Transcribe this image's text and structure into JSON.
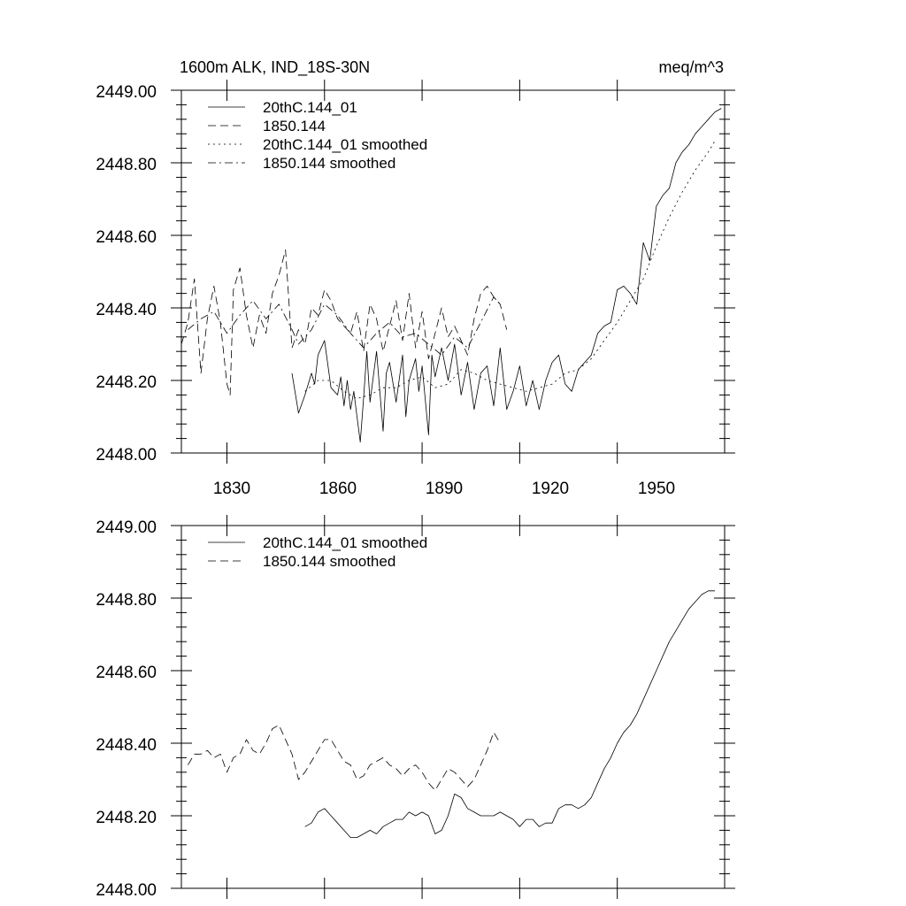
{
  "chart_data": [
    {
      "type": "line",
      "title": "1600m ALK, IND_18S-30N",
      "units": "meq/m^3",
      "xlim": [
        1816,
        1983
      ],
      "ylim": [
        2448.0,
        2449.0
      ],
      "xticks": [
        1830,
        1860,
        1890,
        1920,
        1950
      ],
      "xtick_labels": [
        "1830",
        "1860",
        "1890",
        "1920",
        "1950"
      ],
      "yticks": [
        2448.0,
        2448.2,
        2448.4,
        2448.6,
        2448.8,
        2449.0
      ],
      "ytick_labels": [
        "2448.00",
        "2448.20",
        "2448.40",
        "2448.60",
        "2448.80",
        "2449.00"
      ],
      "legend_position": "top-left",
      "series": [
        {
          "name": "20thC.144_01",
          "dash": "solid",
          "x": [
            1850,
            1852,
            1854,
            1856,
            1857,
            1858,
            1860,
            1862,
            1864,
            1865,
            1866,
            1867,
            1868,
            1869,
            1870,
            1871,
            1872,
            1873,
            1874,
            1876,
            1878,
            1879,
            1880,
            1882,
            1884,
            1885,
            1886,
            1888,
            1889,
            1890,
            1892,
            1893,
            1894,
            1896,
            1898,
            1900,
            1902,
            1904,
            1906,
            1908,
            1910,
            1912,
            1914,
            1916,
            1918,
            1920,
            1922,
            1924,
            1926,
            1928,
            1930,
            1932,
            1934,
            1936,
            1938,
            1940,
            1942,
            1944,
            1946,
            1948,
            1950,
            1952,
            1954,
            1956,
            1958,
            1960,
            1962,
            1964,
            1966,
            1968,
            1970,
            1972,
            1974,
            1976,
            1978,
            1980,
            1982
          ],
          "y": [
            2448.22,
            2448.11,
            2448.16,
            2448.22,
            2448.19,
            2448.27,
            2448.31,
            2448.18,
            2448.16,
            2448.21,
            2448.13,
            2448.2,
            2448.12,
            2448.17,
            2448.1,
            2448.03,
            2448.15,
            2448.28,
            2448.14,
            2448.28,
            2448.06,
            2448.22,
            2448.25,
            2448.14,
            2448.27,
            2448.1,
            2448.2,
            2448.26,
            2448.17,
            2448.24,
            2448.05,
            2448.27,
            2448.21,
            2448.29,
            2448.2,
            2448.3,
            2448.16,
            2448.25,
            2448.12,
            2448.22,
            2448.24,
            2448.13,
            2448.29,
            2448.12,
            2448.17,
            2448.24,
            2448.13,
            2448.2,
            2448.12,
            2448.2,
            2448.25,
            2448.27,
            2448.19,
            2448.17,
            2448.23,
            2448.25,
            2448.27,
            2448.33,
            2448.35,
            2448.36,
            2448.45,
            2448.46,
            2448.44,
            2448.41,
            2448.58,
            2448.53,
            2448.68,
            2448.71,
            2448.73,
            2448.8,
            2448.83,
            2448.85,
            2448.88,
            2448.9,
            2448.92,
            2448.94,
            2448.95
          ]
        },
        {
          "name": "1850.144",
          "dash": "long-dash",
          "x": [
            1816,
            1818,
            1820,
            1822,
            1824,
            1826,
            1828,
            1830,
            1831,
            1832,
            1834,
            1836,
            1838,
            1840,
            1842,
            1844,
            1846,
            1848,
            1850,
            1852,
            1854,
            1856,
            1858,
            1860,
            1862,
            1864,
            1866,
            1868,
            1870,
            1872,
            1874,
            1876,
            1878,
            1880,
            1882,
            1884,
            1886,
            1888,
            1890,
            1892,
            1894,
            1896,
            1898,
            1900,
            1902,
            1904,
            1906,
            1908,
            1910,
            1912,
            1914,
            1916
          ],
          "y": [
            2448.3,
            2448.36,
            2448.48,
            2448.22,
            2448.37,
            2448.46,
            2448.36,
            2448.19,
            2448.16,
            2448.45,
            2448.51,
            2448.38,
            2448.29,
            2448.38,
            2448.33,
            2448.44,
            2448.49,
            2448.56,
            2448.29,
            2448.34,
            2448.3,
            2448.4,
            2448.38,
            2448.45,
            2448.42,
            2448.37,
            2448.35,
            2448.33,
            2448.39,
            2448.28,
            2448.41,
            2448.37,
            2448.28,
            2448.35,
            2448.42,
            2448.31,
            2448.44,
            2448.29,
            2448.39,
            2448.26,
            2448.33,
            2448.4,
            2448.32,
            2448.35,
            2448.31,
            2448.27,
            2448.37,
            2448.44,
            2448.46,
            2448.43,
            2448.41,
            2448.34
          ]
        },
        {
          "name": "20thC.144_01 smoothed",
          "dash": "dotted",
          "x": [
            1854,
            1858,
            1862,
            1866,
            1870,
            1874,
            1878,
            1882,
            1886,
            1890,
            1894,
            1898,
            1902,
            1906,
            1910,
            1914,
            1918,
            1922,
            1926,
            1930,
            1934,
            1938,
            1942,
            1946,
            1950,
            1954,
            1958,
            1962,
            1966,
            1970,
            1974,
            1978,
            1980
          ],
          "y": [
            2448.17,
            2448.2,
            2448.2,
            2448.17,
            2448.15,
            2448.16,
            2448.18,
            2448.18,
            2448.2,
            2448.21,
            2448.18,
            2448.19,
            2448.23,
            2448.22,
            2448.2,
            2448.19,
            2448.18,
            2448.17,
            2448.18,
            2448.19,
            2448.22,
            2448.23,
            2448.26,
            2448.31,
            2448.36,
            2448.42,
            2448.48,
            2448.57,
            2448.65,
            2448.72,
            2448.78,
            2448.83,
            2448.86
          ]
        },
        {
          "name": "1850.144 smoothed",
          "dash": "dash-dot",
          "x": [
            1818,
            1822,
            1826,
            1830,
            1834,
            1838,
            1842,
            1846,
            1850,
            1852,
            1856,
            1860,
            1864,
            1868,
            1872,
            1876,
            1880,
            1884,
            1888,
            1892,
            1896,
            1900,
            1904,
            1908,
            1912,
            1914
          ],
          "y": [
            2448.34,
            2448.37,
            2448.39,
            2448.33,
            2448.38,
            2448.42,
            2448.37,
            2448.41,
            2448.34,
            2448.3,
            2448.34,
            2448.41,
            2448.38,
            2448.33,
            2448.29,
            2448.33,
            2448.36,
            2448.32,
            2448.33,
            2448.3,
            2448.27,
            2448.32,
            2448.29,
            2448.36,
            2448.43,
            2448.41
          ]
        }
      ]
    },
    {
      "type": "line",
      "title": "",
      "xlim": [
        1816,
        1983
      ],
      "ylim": [
        2448.0,
        2449.0
      ],
      "xticks": [
        1830,
        1860,
        1890,
        1920,
        1950
      ],
      "yticks": [
        2448.0,
        2448.2,
        2448.4,
        2448.6,
        2448.8,
        2449.0
      ],
      "ytick_labels": [
        "2448.00",
        "2448.20",
        "2448.40",
        "2448.60",
        "2448.80",
        "2449.00"
      ],
      "legend_position": "top-left",
      "series": [
        {
          "name": "20thC.144_01 smoothed",
          "dash": "solid",
          "x": [
            1854,
            1856,
            1858,
            1860,
            1862,
            1864,
            1866,
            1868,
            1870,
            1872,
            1874,
            1876,
            1878,
            1880,
            1882,
            1884,
            1886,
            1888,
            1890,
            1892,
            1894,
            1896,
            1898,
            1900,
            1902,
            1904,
            1906,
            1908,
            1910,
            1912,
            1914,
            1916,
            1918,
            1920,
            1922,
            1924,
            1926,
            1928,
            1930,
            1932,
            1934,
            1936,
            1938,
            1940,
            1942,
            1944,
            1946,
            1948,
            1950,
            1952,
            1954,
            1956,
            1958,
            1960,
            1962,
            1964,
            1966,
            1968,
            1970,
            1972,
            1974,
            1976,
            1978,
            1980
          ],
          "y": [
            2448.17,
            2448.18,
            2448.21,
            2448.22,
            2448.2,
            2448.18,
            2448.16,
            2448.14,
            2448.14,
            2448.15,
            2448.16,
            2448.15,
            2448.17,
            2448.18,
            2448.19,
            2448.19,
            2448.21,
            2448.2,
            2448.21,
            2448.2,
            2448.15,
            2448.16,
            2448.2,
            2448.26,
            2448.25,
            2448.22,
            2448.21,
            2448.2,
            2448.2,
            2448.2,
            2448.21,
            2448.2,
            2448.19,
            2448.17,
            2448.19,
            2448.19,
            2448.17,
            2448.18,
            2448.18,
            2448.22,
            2448.23,
            2448.23,
            2448.22,
            2448.23,
            2448.25,
            2448.29,
            2448.33,
            2448.36,
            2448.4,
            2448.43,
            2448.45,
            2448.48,
            2448.52,
            2448.56,
            2448.6,
            2448.64,
            2448.68,
            2448.71,
            2448.74,
            2448.77,
            2448.79,
            2448.81,
            2448.82,
            2448.82
          ]
        },
        {
          "name": "1850.144 smoothed",
          "dash": "long-dash",
          "x": [
            1818,
            1820,
            1822,
            1824,
            1826,
            1828,
            1830,
            1832,
            1834,
            1836,
            1838,
            1840,
            1842,
            1844,
            1846,
            1848,
            1850,
            1852,
            1854,
            1856,
            1858,
            1860,
            1862,
            1864,
            1866,
            1868,
            1870,
            1872,
            1874,
            1876,
            1878,
            1880,
            1882,
            1884,
            1886,
            1888,
            1890,
            1892,
            1894,
            1896,
            1898,
            1900,
            1902,
            1904,
            1906,
            1908,
            1910,
            1912,
            1914
          ],
          "y": [
            2448.34,
            2448.37,
            2448.37,
            2448.38,
            2448.36,
            2448.37,
            2448.32,
            2448.36,
            2448.37,
            2448.41,
            2448.38,
            2448.37,
            2448.4,
            2448.44,
            2448.45,
            2448.41,
            2448.37,
            2448.3,
            2448.32,
            2448.35,
            2448.38,
            2448.41,
            2448.41,
            2448.38,
            2448.35,
            2448.34,
            2448.3,
            2448.31,
            2448.34,
            2448.35,
            2448.36,
            2448.34,
            2448.33,
            2448.31,
            2448.33,
            2448.34,
            2448.32,
            2448.29,
            2448.27,
            2448.3,
            2448.33,
            2448.32,
            2448.3,
            2448.28,
            2448.3,
            2448.34,
            2448.38,
            2448.43,
            2448.4
          ]
        }
      ]
    }
  ]
}
